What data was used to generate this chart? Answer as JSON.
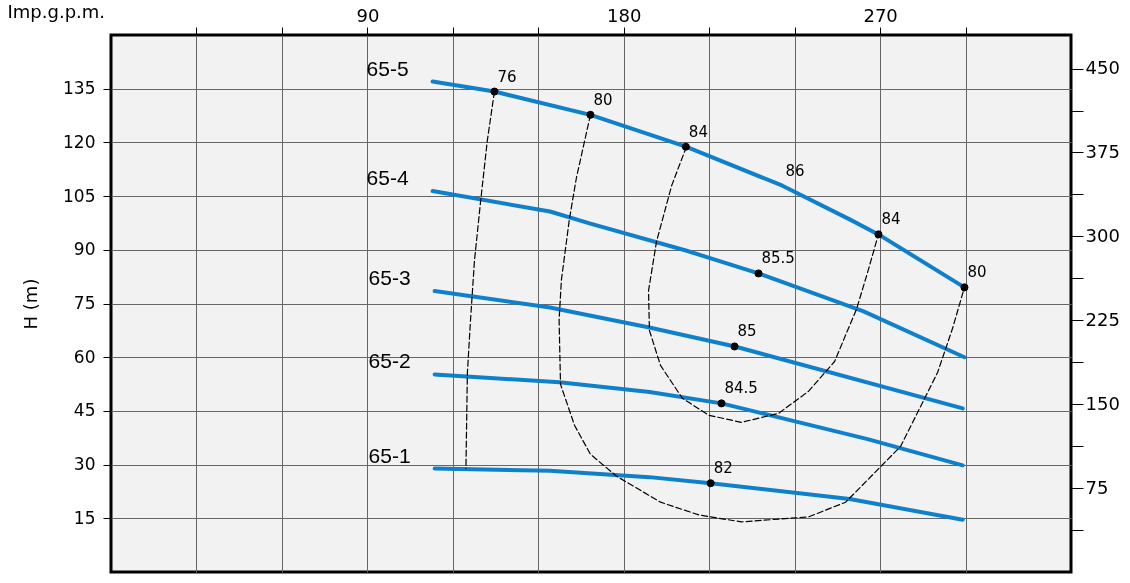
{
  "chart_data": {
    "type": "line",
    "xlabel": "Imp.g.p.m.",
    "ylabel": "H (m)",
    "xlim": [
      0,
      337
    ],
    "ylim": [
      0,
      150
    ],
    "y2lim": [
      0,
      480
    ],
    "xticks": [
      {
        "value": 30,
        "label": null
      },
      {
        "value": 60,
        "label": null
      },
      90,
      {
        "value": 120,
        "label": null
      },
      {
        "value": 150,
        "label": null
      },
      180,
      {
        "value": 210,
        "label": null
      },
      {
        "value": 240,
        "label": null
      },
      270,
      {
        "value": 300,
        "label": null
      }
    ],
    "yticks": [
      15,
      30,
      45,
      60,
      75,
      90,
      105,
      120,
      135
    ],
    "y2ticks": [
      {
        "value": 37.5,
        "label": null
      },
      75,
      {
        "value": 112.5,
        "label": null
      },
      150,
      {
        "value": 187.5,
        "label": null
      },
      225,
      {
        "value": 262.5,
        "label": null
      },
      300,
      {
        "value": 337.5,
        "label": null
      },
      375,
      {
        "value": 412.5,
        "label": null
      },
      450
    ],
    "grid": true,
    "series": [
      {
        "name": "65-5",
        "color": "#0f80cc",
        "line_style": "solid",
        "x": [
          112.9,
          134.6,
          168.3,
          201.8,
          235.7,
          259.3,
          269.4,
          299.6
        ],
        "values": [
          137.0,
          134.2,
          127.7,
          118.8,
          107.9,
          98.5,
          94.3,
          79.5
        ]
      },
      {
        "name": "65-4",
        "color": "#0f80cc",
        "line_style": "solid",
        "x": [
          112.9,
          154.1,
          168.3,
          201.8,
          227.3,
          264.2,
          299.6
        ],
        "values": [
          106.4,
          100.7,
          97.3,
          89.8,
          83.4,
          72.8,
          60.0
        ]
      },
      {
        "name": "65-3",
        "color": "#0f80cc",
        "line_style": "solid",
        "x": [
          113.6,
          154.1,
          189.0,
          219.0,
          299.0
        ],
        "values": [
          78.5,
          73.9,
          68.3,
          63.0,
          45.7
        ]
      },
      {
        "name": "65-2",
        "color": "#0f80cc",
        "line_style": "solid",
        "x": [
          113.6,
          157.4,
          189.1,
          214.3,
          265.6,
          299.0
        ],
        "values": [
          55.2,
          53.0,
          50.3,
          47.1,
          37.1,
          29.8
        ]
      },
      {
        "name": "65-1",
        "color": "#0f80cc",
        "line_style": "solid",
        "x": [
          113.6,
          154.1,
          189.0,
          210.5,
          259.3,
          299.0
        ],
        "values": [
          28.9,
          28.3,
          26.5,
          24.8,
          20.4,
          14.6
        ]
      },
      {
        "color": "#000000",
        "line_style": "dashed",
        "x": [
          134.6,
          132.1,
          129.7,
          127.6,
          126.2,
          125.1,
          124.6
        ],
        "values": [
          134.2,
          120.5,
          103.2,
          87.0,
          70.3,
          55.5,
          29.0
        ]
      },
      {
        "color": "#000000",
        "line_style": "dashed",
        "x": [
          168.3,
          163.4,
          160.9,
          158.1,
          157.3,
          157.8,
          162.7,
          168.3,
          177.4,
          192.9,
          206.5,
          221.3,
          244.9,
          257.9,
          277.2,
          290.2,
          295.4,
          299.6
        ],
        "values": [
          127.7,
          110.2,
          98.5,
          81.5,
          70.4,
          52.4,
          41.0,
          32.9,
          26.8,
          19.5,
          15.9,
          14.0,
          15.4,
          19.5,
          35.1,
          55.8,
          68.0,
          79.5
        ]
      },
      {
        "color": "#000000",
        "line_style": "dashed",
        "x": [
          202.0,
          196.8,
          191.5,
          188.7,
          189.0,
          192.9,
          200.6,
          209.8,
          221.3,
          234.3,
          244.9,
          254.0,
          261.7,
          265.6,
          269.4
        ],
        "values": [
          118.8,
          107.9,
          92.3,
          78.6,
          67.5,
          57.7,
          48.5,
          43.8,
          41.8,
          44.3,
          50.5,
          58.8,
          73.4,
          83.7,
          94.3
        ]
      },
      {
        "type": "scatter",
        "marker": "circle",
        "color": "#000000",
        "x": [
          134.6,
          168.3,
          201.8,
          269.4,
          299.6,
          227.3,
          218.9,
          214.3,
          210.5
        ],
        "values": [
          134.2,
          127.7,
          118.8,
          94.3,
          79.5,
          83.4,
          63.0,
          47.1,
          24.8
        ]
      }
    ],
    "annotations": [
      {
        "text": "76",
        "x": 134.6,
        "y": 134.2
      },
      {
        "text": "80",
        "x": 168.3,
        "y": 127.7
      },
      {
        "text": "84",
        "x": 201.8,
        "y": 118.8
      },
      {
        "text": "86",
        "x": 235.7,
        "y": 107.9
      },
      {
        "text": "84",
        "x": 269.4,
        "y": 94.3
      },
      {
        "text": "80",
        "x": 299.6,
        "y": 79.5
      },
      {
        "text": "85.5",
        "x": 227.3,
        "y": 83.4
      },
      {
        "text": "85",
        "x": 218.9,
        "y": 63.0
      },
      {
        "text": "84.5",
        "x": 214.3,
        "y": 47.1
      },
      {
        "text": "82",
        "x": 210.5,
        "y": 24.8
      }
    ]
  }
}
